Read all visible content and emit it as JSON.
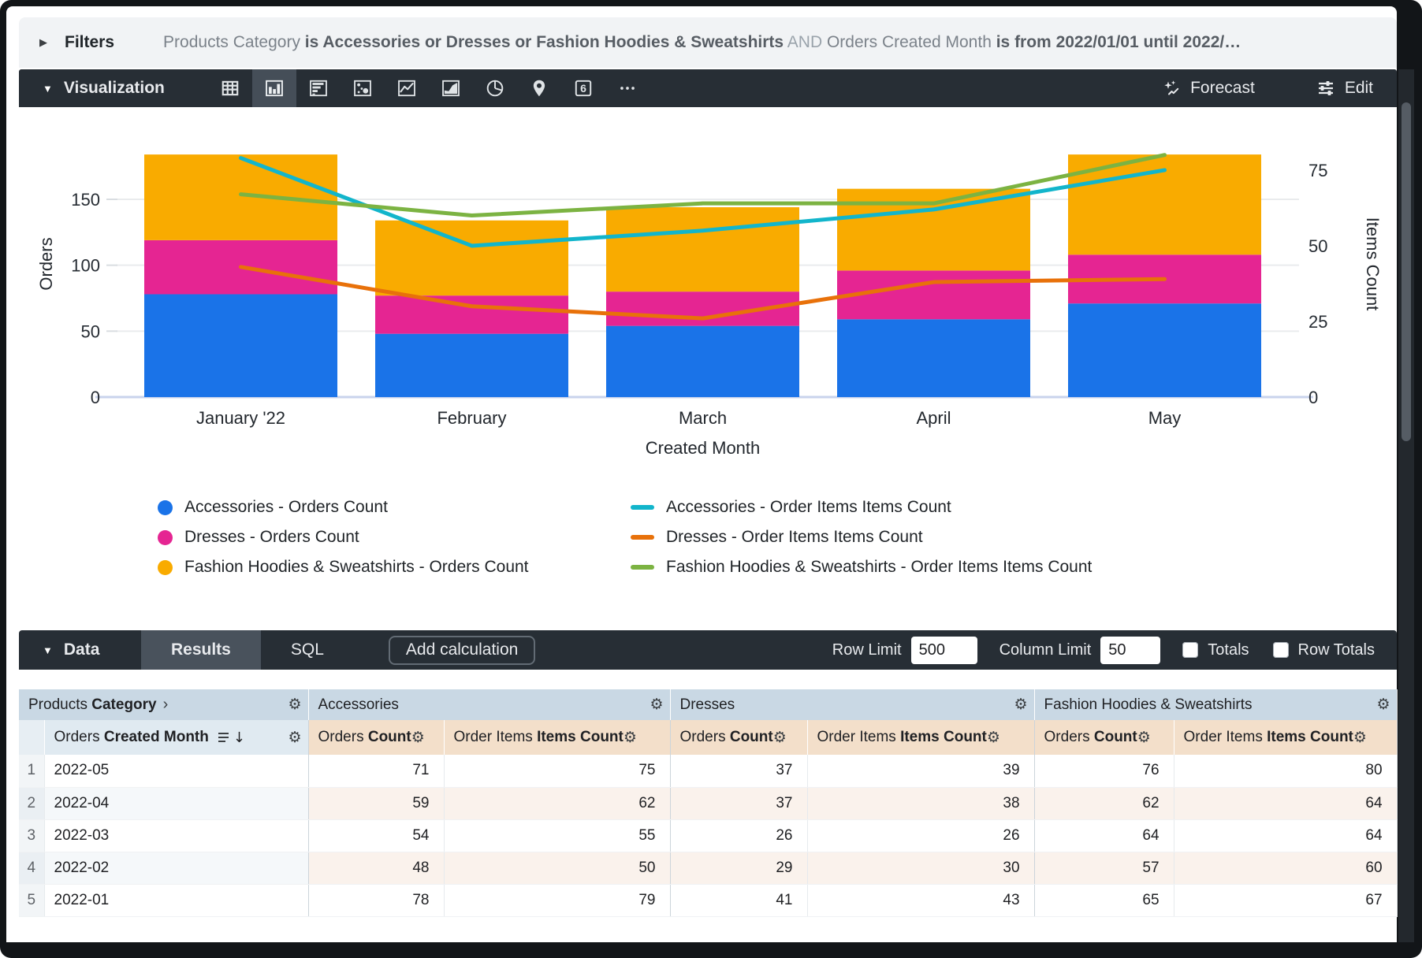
{
  "filters": {
    "label": "Filters",
    "segments": [
      {
        "text": "Products Category ",
        "style": "field"
      },
      {
        "text": "is Accessories or Dresses or Fashion Hoodies & Sweatshirts",
        "style": "value"
      },
      {
        "text": " AND ",
        "style": "conjunction"
      },
      {
        "text": "Orders Created Month ",
        "style": "field"
      },
      {
        "text": "is from 2022/01/01 until 2022/…",
        "style": "value"
      }
    ]
  },
  "visualization": {
    "label": "Visualization",
    "icons": [
      "table",
      "column-chart",
      "bar-chart",
      "scatter",
      "line-chart",
      "area-chart",
      "pie-chart",
      "map",
      "single-value",
      "more"
    ],
    "selected_icon": "column-chart",
    "forecast_label": "Forecast",
    "edit_label": "Edit"
  },
  "chart_data": {
    "type": "combo-stacked-bar-line",
    "x_field": "Created Month",
    "categories": [
      "January '22",
      "February",
      "March",
      "April",
      "May"
    ],
    "left_axis": {
      "label": "Orders",
      "ticks": [
        0,
        50,
        100,
        150
      ],
      "max": 202
    },
    "right_axis": {
      "label": "Items Count",
      "ticks": [
        0,
        25,
        50,
        75
      ],
      "max": 88
    },
    "bar_series": [
      {
        "name": "Accessories - Orders Count",
        "color": "#1A73E8",
        "values": [
          78,
          48,
          54,
          59,
          71
        ]
      },
      {
        "name": "Dresses - Orders Count",
        "color": "#E52592",
        "values": [
          41,
          29,
          26,
          37,
          37
        ]
      },
      {
        "name": "Fashion Hoodies & Sweatshirts - Orders Count",
        "color": "#F9AB00",
        "values": [
          65,
          57,
          64,
          62,
          76
        ]
      }
    ],
    "line_series": [
      {
        "name": "Accessories - Order Items Items Count",
        "color": "#12B5CB",
        "values": [
          79,
          50,
          55,
          62,
          75
        ]
      },
      {
        "name": "Dresses - Order Items Items Count",
        "color": "#E8710A",
        "values": [
          43,
          30,
          26,
          38,
          39
        ]
      },
      {
        "name": "Fashion Hoodies & Sweatshirts - Order Items Items Count",
        "color": "#7CB342",
        "values": [
          67,
          60,
          64,
          64,
          80
        ]
      }
    ],
    "legend_position": "bottom"
  },
  "data_section": {
    "label": "Data",
    "tabs": [
      {
        "label": "Results",
        "active": true
      },
      {
        "label": "SQL",
        "active": false
      }
    ],
    "add_calculation_label": "Add calculation",
    "row_limit_label": "Row Limit",
    "row_limit_value": "500",
    "column_limit_label": "Column Limit",
    "column_limit_value": "50",
    "totals_label": "Totals",
    "totals_checked": false,
    "row_totals_label": "Row Totals",
    "row_totals_checked": false
  },
  "table": {
    "dimension_group": {
      "prefix": "Products",
      "name": "Category"
    },
    "groups": [
      "Accessories",
      "Dresses",
      "Fashion Hoodies & Sweatshirts"
    ],
    "dimension_column": {
      "prefix": "Orders",
      "name": "Created Month"
    },
    "measure_columns": [
      {
        "prefix": "Orders",
        "name": "Count"
      },
      {
        "prefix": "Order Items",
        "name": "Items Count"
      }
    ],
    "rows": [
      {
        "index": "1",
        "month": "2022-05",
        "values": [
          71,
          75,
          37,
          39,
          76,
          80
        ]
      },
      {
        "index": "2",
        "month": "2022-04",
        "values": [
          59,
          62,
          37,
          38,
          62,
          64
        ]
      },
      {
        "index": "3",
        "month": "2022-03",
        "values": [
          54,
          55,
          26,
          26,
          64,
          64
        ]
      },
      {
        "index": "4",
        "month": "2022-02",
        "values": [
          48,
          50,
          29,
          30,
          57,
          60
        ]
      },
      {
        "index": "5",
        "month": "2022-01",
        "values": [
          78,
          79,
          41,
          43,
          65,
          67
        ]
      }
    ]
  }
}
